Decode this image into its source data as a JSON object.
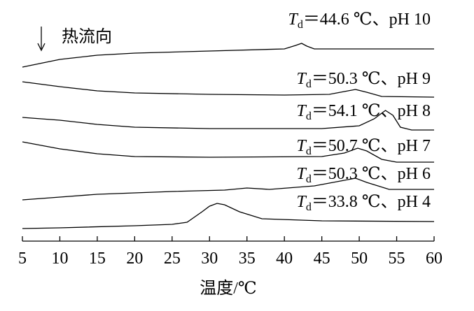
{
  "chart_data": {
    "type": "line",
    "x_label": "温度/℃",
    "heat_flow_label": "热流向",
    "label_symbol": "T",
    "label_subscript": "d",
    "xlim": [
      5,
      60
    ],
    "xticks": [
      5,
      10,
      15,
      20,
      25,
      30,
      35,
      40,
      45,
      50,
      55,
      60
    ],
    "ylim": [
      0,
      320
    ],
    "color": "#000000",
    "series": [
      {
        "name": "＝44.6 ℃、pH 10",
        "x": [
          5,
          10,
          15,
          20,
          30,
          40,
          41.5,
          42.3,
          43,
          44,
          50,
          60
        ],
        "values": [
          249,
          260,
          266,
          269,
          272,
          275,
          280,
          283,
          279,
          275,
          275,
          275
        ]
      },
      {
        "name": "＝50.3 ℃、pH 9",
        "x": [
          5,
          10,
          15,
          20,
          30,
          40,
          46,
          48,
          49.5,
          51,
          53,
          60
        ],
        "values": [
          228,
          221,
          215,
          212,
          210,
          209,
          210,
          214,
          217,
          213,
          207,
          206
        ]
      },
      {
        "name": "＝54.1 ℃、pH 8",
        "x": [
          5,
          10,
          15,
          20,
          30,
          45,
          50,
          52,
          53.5,
          54.5,
          55.5,
          57,
          60
        ],
        "values": [
          177,
          173,
          167,
          163,
          161,
          161,
          165,
          175,
          187,
          180,
          163,
          159,
          159
        ]
      },
      {
        "name": "＝50.7 ℃、pH 7",
        "x": [
          5,
          10,
          15,
          20,
          30,
          45,
          48,
          49.8,
          51,
          53,
          55,
          60
        ],
        "values": [
          142,
          132,
          125,
          121,
          120,
          121,
          126,
          133,
          129,
          117,
          113,
          113
        ]
      },
      {
        "name": "＝50.3 ℃、pH 6",
        "x": [
          5,
          10,
          15,
          25,
          32,
          35,
          38,
          44,
          48,
          49.5,
          51,
          54,
          60
        ],
        "values": [
          59,
          63,
          67,
          71,
          73,
          76,
          74,
          79,
          87,
          90,
          84,
          74,
          74
        ]
      },
      {
        "name": "＝33.8 ℃、pH 4",
        "x": [
          5,
          10,
          20,
          25,
          27,
          29,
          30,
          31,
          32,
          34,
          37,
          45,
          60
        ],
        "values": [
          18,
          19,
          22,
          24,
          27,
          42,
          50,
          54,
          52,
          42,
          32,
          29,
          28
        ]
      }
    ]
  }
}
